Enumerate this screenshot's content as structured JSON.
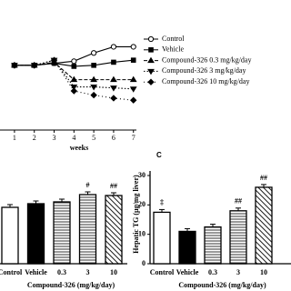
{
  "chart_data": [
    {
      "type": "line",
      "xlabel": "weeks",
      "xlim": [
        0.27,
        7.15
      ],
      "xticks": [
        1,
        2,
        3,
        4,
        5,
        6,
        7
      ],
      "ylim": [
        0,
        100
      ],
      "x": [
        1,
        2,
        3,
        4,
        5,
        6,
        7
      ],
      "series": [
        {
          "name": "Control",
          "color": "#000000",
          "dash": "none",
          "marker": "open-circle",
          "values": [
            63,
            63,
            65,
            67,
            75,
            81,
            81
          ]
        },
        {
          "name": "Vehicle",
          "color": "#000000",
          "dash": "none",
          "marker": "square",
          "values": [
            63,
            63,
            65,
            62,
            63,
            66,
            68
          ]
        },
        {
          "name": "Compound-326 0.3 mg/kg/day",
          "color": "#000000",
          "dash": "4 2",
          "marker": "triangle",
          "values": [
            63,
            63,
            66,
            49,
            49,
            49,
            49
          ]
        },
        {
          "name": "Compound-326 3 mg/kg/day",
          "color": "#000000",
          "dash": "1.5 2",
          "marker": "triangle-down",
          "values": [
            63,
            63,
            68,
            42,
            42,
            41,
            40
          ]
        },
        {
          "name": "Compound-326 10 mg/kg/day",
          "color": "#000000",
          "dash": "1 3",
          "marker": "diamond",
          "values": [
            63,
            63,
            68,
            38,
            34,
            31,
            29
          ]
        }
      ]
    },
    {
      "type": "bar",
      "xlabel": "Compound-326 (mg/kg/day)",
      "ylim": [
        0,
        100
      ],
      "categories": [
        "Control",
        "Vehicle",
        "0.3",
        "3",
        "10"
      ],
      "values": [
        62,
        66,
        68,
        76,
        75
      ],
      "fills": [
        "#ffffff",
        "#000000",
        "horizontal",
        "horizontal",
        "diagonal"
      ],
      "annotations": [
        {
          "index": 3,
          "text": "#"
        },
        {
          "index": 4,
          "text": "##"
        }
      ]
    },
    {
      "type": "bar",
      "panel": "C",
      "ylabel": "Hepatic TG (μg/mg liver)",
      "xlabel": "Compound-326 (mg/kg/day)",
      "ylim": [
        0,
        30
      ],
      "yticks": [
        0,
        10,
        20,
        30
      ],
      "categories": [
        "Control",
        "Vehicle",
        "0.3",
        "3",
        "10"
      ],
      "values": [
        17.5,
        11,
        12.5,
        18,
        26
      ],
      "fills": [
        "#ffffff",
        "#000000",
        "horizontal",
        "horizontal",
        "diagonal"
      ],
      "annotations": [
        {
          "index": 0,
          "text": "‡"
        },
        {
          "index": 3,
          "text": "##"
        },
        {
          "index": 4,
          "text": "##"
        }
      ]
    }
  ]
}
